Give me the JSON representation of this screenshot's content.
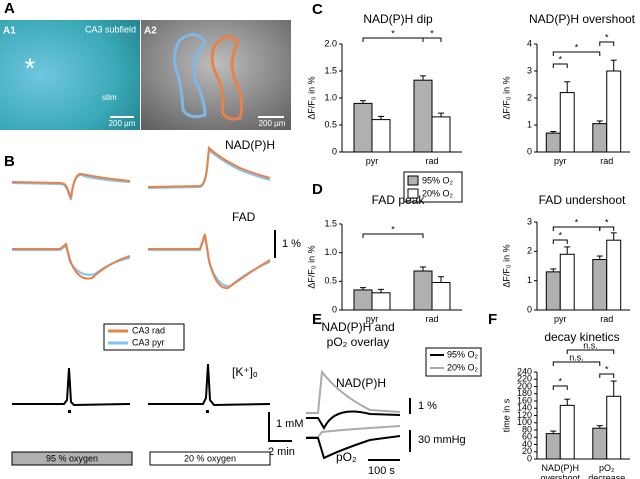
{
  "figure": {
    "panels": {
      "a": "A",
      "b": "B",
      "c": "C",
      "d": "D",
      "e": "E",
      "f": "F"
    },
    "a1": {
      "label": "A1",
      "region": "CA3 subfield",
      "marker": "*",
      "stim": "stim",
      "scale": "200 µm"
    },
    "a2": {
      "label": "A2",
      "scale": "200 µm"
    },
    "b": {
      "nadph": "NAD(P)H",
      "fad": "FAD",
      "fad_scale": "1 %",
      "legend": [
        "CA3 rad",
        "CA3 pyr"
      ],
      "k": "[K⁺]ₒ",
      "k_scale": "1 mM",
      "time_scale": "2 min",
      "conditions": [
        "95 % oxygen",
        "20 % oxygen"
      ]
    },
    "e": {
      "title_1": "NAD(P)H and",
      "title_2": "pO₂ overlay",
      "legend": [
        "95% O₂",
        "20% O₂"
      ],
      "nadph": "NAD(P)H",
      "nadph_scale": "1 %",
      "po2": "pO₂",
      "po2_scale": "30 mmHg",
      "time_scale": "100 s"
    }
  },
  "chart_data": [
    {
      "type": "bar",
      "title": "NAD(P)H dip",
      "y_label": "ΔF/F₀ in %",
      "categories": [
        "pyr",
        "rad"
      ],
      "series": [
        {
          "color": "#b0b0b0",
          "values": [
            0.9,
            1.33
          ],
          "errors": [
            0.05,
            0.08
          ]
        },
        {
          "color": "#ffffff",
          "values": [
            0.6,
            0.65
          ],
          "errors": [
            0.06,
            0.07
          ]
        }
      ],
      "ylim": [
        0,
        2
      ],
      "yticks": [
        0,
        0.5,
        {
          "value": 1,
          "label": "1.0"
        },
        1.5,
        {
          "value": 2,
          "label": "2.0"
        }
      ],
      "annotations": [
        "*",
        "*"
      ]
    },
    {
      "type": "bar",
      "title": "NAD(P)H overshoot",
      "y_label": "ΔF/F₀ in %",
      "categories": [
        "pyr",
        "rad"
      ],
      "series": [
        {
          "color": "#b0b0b0",
          "values": [
            0.7,
            1.05
          ],
          "errors": [
            0.06,
            0.1
          ]
        },
        {
          "color": "#ffffff",
          "values": [
            2.2,
            3.0
          ],
          "errors": [
            0.4,
            0.4
          ]
        }
      ],
      "ylim": [
        0,
        4
      ],
      "yticks": [
        0,
        1,
        2,
        3,
        4
      ],
      "annotations": [
        "*",
        "*",
        "*"
      ]
    },
    {
      "type": "bar",
      "title": "FAD peak",
      "y_label": "ΔF/F₀ in %",
      "categories": [
        "pyr",
        "rad"
      ],
      "series": [
        {
          "name": "95% O₂",
          "color": "#b0b0b0",
          "values": [
            0.35,
            0.68
          ],
          "errors": [
            0.04,
            0.07
          ]
        },
        {
          "name": "20% O₂",
          "color": "#ffffff",
          "values": [
            0.3,
            0.48
          ],
          "errors": [
            0.06,
            0.1
          ]
        }
      ],
      "ylim": [
        0,
        1.5
      ],
      "yticks": [
        0,
        0.5,
        {
          "value": 1,
          "label": "1.0"
        },
        1.5
      ],
      "annotations": [
        "*"
      ]
    },
    {
      "type": "bar",
      "title": "FAD undershoot",
      "y_label": "ΔF/F₀ in %",
      "categories": [
        "pyr",
        "rad"
      ],
      "series": [
        {
          "color": "#b0b0b0",
          "values": [
            1.3,
            1.72
          ],
          "errors": [
            0.1,
            0.12
          ]
        },
        {
          "color": "#ffffff",
          "values": [
            1.9,
            2.38
          ],
          "errors": [
            0.25,
            0.25
          ]
        }
      ],
      "ylim": [
        0,
        3
      ],
      "yticks": [
        0,
        1,
        2,
        3
      ],
      "annotations": [
        "*",
        "*",
        "*"
      ]
    },
    {
      "type": "bar",
      "title": "decay kinetics",
      "y_label": "time in s",
      "categories": [
        "NAD(P)H overshoot",
        "pO₂ decrease"
      ],
      "series": [
        {
          "color": "#b0b0b0",
          "values": [
            70,
            85
          ],
          "errors": [
            7,
            7
          ]
        },
        {
          "color": "#ffffff",
          "values": [
            148,
            173
          ],
          "errors": [
            17,
            42
          ]
        }
      ],
      "ylim": [
        0,
        240
      ],
      "yticks": [
        0,
        20,
        40,
        60,
        80,
        100,
        120,
        140,
        160,
        180,
        200,
        220,
        240
      ],
      "annotations": [
        "*",
        "n.s.",
        "n.s.",
        "*"
      ]
    }
  ]
}
